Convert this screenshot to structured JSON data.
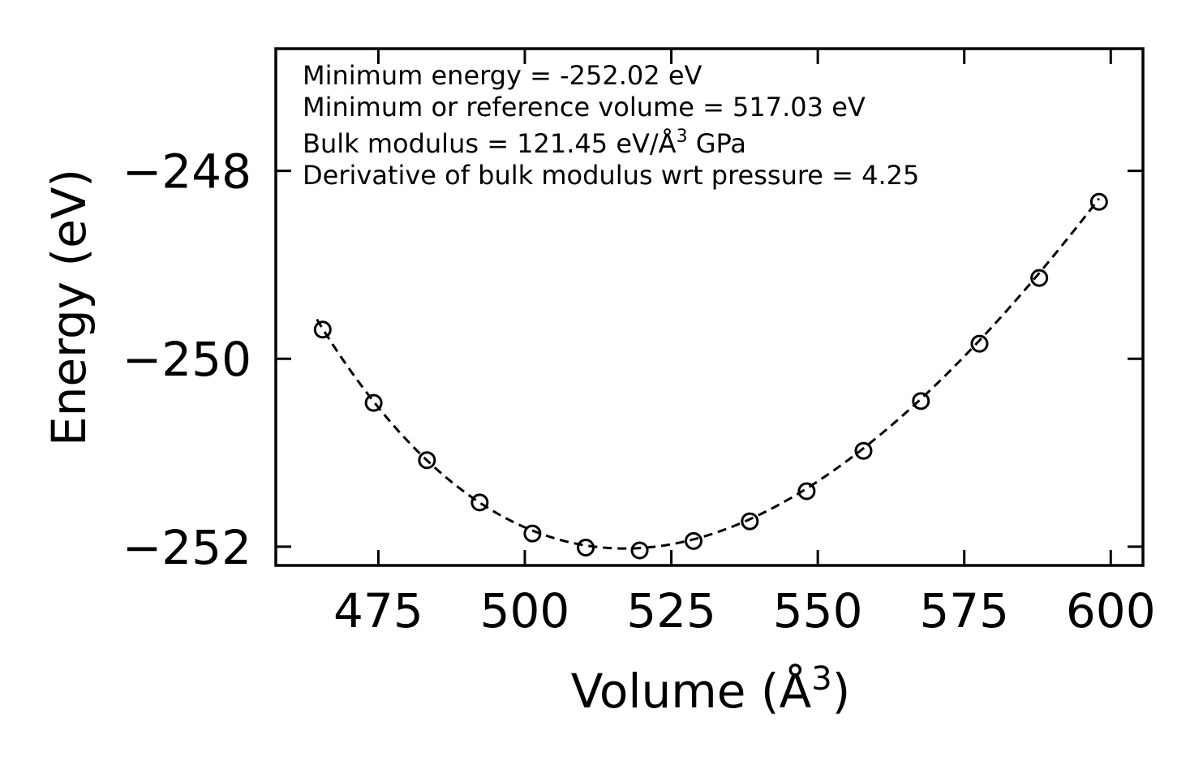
{
  "chart_data": {
    "type": "scatter",
    "title": "",
    "xlabel": "Volume (Å",
    "xlabel_sup": "3",
    "xlabel_close": ")",
    "ylabel": "Energy (eV)",
    "xlim": [
      457.5,
      605.5
    ],
    "ylim": [
      -252.2,
      -246.7
    ],
    "xticks": [
      475,
      500,
      525,
      550,
      575,
      600
    ],
    "yticks": [
      -248,
      -250,
      -252
    ],
    "xtick_labels": [
      "475",
      "500",
      "525",
      "550",
      "575",
      "600"
    ],
    "ytick_labels": [
      "−248",
      "−250",
      "−252"
    ],
    "series": [
      {
        "name": "data",
        "marker": "open-circle",
        "x": [
          465.5,
          474.2,
          483.3,
          492.3,
          501.3,
          510.4,
          519.6,
          528.8,
          538.4,
          548.1,
          557.8,
          567.6,
          577.6,
          587.8,
          598.0
        ],
        "y": [
          -249.69,
          -250.47,
          -251.08,
          -251.53,
          -251.86,
          -252.01,
          -252.04,
          -251.94,
          -251.73,
          -251.41,
          -250.98,
          -250.45,
          -249.84,
          -249.14,
          -248.33
        ]
      },
      {
        "name": "fit",
        "style": "dashed-line",
        "curve": "birch-murnaghan",
        "E0": -252.02,
        "V0": 517.03,
        "B0": 121.45,
        "B0_prime": 4.25,
        "x_range": [
          464.5,
          598.0
        ]
      }
    ],
    "annotations": [
      "Minimum energy = -252.02 eV",
      "Minimum or reference volume = 517.03 eV",
      "Bulk modulus = 121.45 eV/Å",
      "3",
      " GPa",
      "Derivative of bulk modulus wrt pressure = 4.25"
    ]
  }
}
